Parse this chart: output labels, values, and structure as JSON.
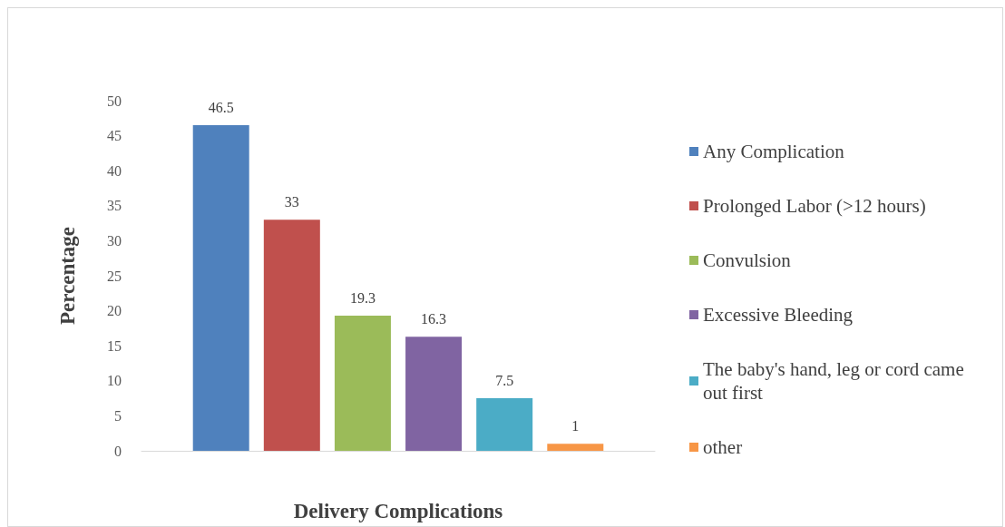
{
  "chart_data": {
    "type": "bar",
    "xlabel": "Delivery Complications",
    "ylabel": "Percentage",
    "categories": [
      null
    ],
    "series": [
      {
        "name": "Any Complication",
        "color": "#4f81bd",
        "values": [
          46.5
        ]
      },
      {
        "name": "Prolonged Labor (>12 hours)",
        "color": "#c0504d",
        "values": [
          33
        ]
      },
      {
        "name": "Convulsion",
        "color": "#9bbb59",
        "values": [
          19.3
        ]
      },
      {
        "name": "Excessive Bleeding",
        "color": "#8064a2",
        "values": [
          16.3
        ]
      },
      {
        "name": "The baby's hand, leg or cord came out first",
        "color": "#4bacc6",
        "values": [
          7.5
        ]
      },
      {
        "name": "other",
        "color": "#f79646",
        "values": [
          1
        ]
      }
    ],
    "ylim": [
      0,
      50
    ],
    "yticks": [
      0,
      5,
      10,
      15,
      20,
      25,
      30,
      35,
      40,
      45,
      50
    ],
    "grid": false,
    "legend": "right",
    "data_labels": true
  }
}
